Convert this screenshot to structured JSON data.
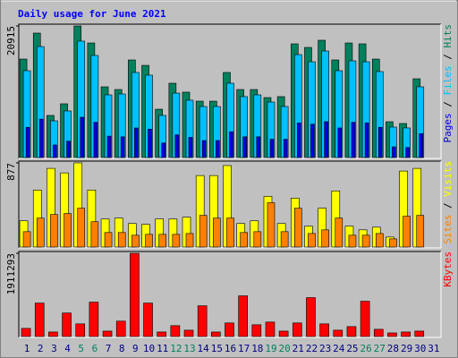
{
  "chart_data": {
    "type": "bar",
    "title": "Daily usage for June 2021",
    "legend_separator": " / ",
    "categories": [
      "1",
      "2",
      "3",
      "4",
      "5",
      "6",
      "7",
      "8",
      "9",
      "10",
      "11",
      "12",
      "13",
      "14",
      "15",
      "16",
      "17",
      "18",
      "19",
      "20",
      "21",
      "22",
      "23",
      "24",
      "25",
      "26",
      "27",
      "28",
      "29",
      "30",
      "31"
    ],
    "category_colors": [
      "#000080",
      "#000080",
      "#000080",
      "#000080",
      "#008060",
      "#008060",
      "#000080",
      "#000080",
      "#000080",
      "#000080",
      "#000080",
      "#008060",
      "#008060",
      "#000080",
      "#000080",
      "#000080",
      "#000080",
      "#000080",
      "#008060",
      "#008060",
      "#000080",
      "#000080",
      "#000080",
      "#000080",
      "#000080",
      "#008060",
      "#008060",
      "#000080",
      "#000080",
      "#000080",
      "#000080"
    ],
    "panels": [
      {
        "ylim": [
          0,
          20915
        ],
        "yticks": [
          20915
        ],
        "series": [
          {
            "name": "Hits",
            "color": "#00805c",
            "values": [
              15650,
              19780,
              6690,
              8540,
              20915,
              18210,
              11240,
              10810,
              15510,
              14650,
              7680,
              11810,
              10390,
              8960,
              8960,
              13520,
              10810,
              10810,
              9530,
              9680,
              18070,
              17500,
              18640,
              15510,
              18210,
              18070,
              15650,
              5690,
              5410,
              12520,
              null
            ]
          },
          {
            "name": "Files",
            "color": "#00c0ff",
            "values": [
              13800,
              17640,
              5830,
              7400,
              18500,
              16220,
              9960,
              10100,
              13520,
              13090,
              6690,
              10240,
              9110,
              8110,
              8110,
              11810,
              9680,
              9960,
              8820,
              8110,
              16360,
              15220,
              16930,
              13800,
              15370,
              15220,
              13660,
              4840,
              4700,
              11240,
              null
            ]
          },
          {
            "name": "Pages",
            "color": "#0000e0",
            "values": [
              4800,
              6100,
              2000,
              2600,
              6400,
              5600,
              3400,
              3300,
              4700,
              4500,
              2300,
              3600,
              3200,
              2700,
              2700,
              4100,
              3300,
              3300,
              2900,
              2900,
              5500,
              5300,
              5700,
              4700,
              5600,
              5500,
              4800,
              1700,
              1600,
              3800,
              null
            ]
          }
        ]
      },
      {
        "ylim": [
          0,
          877
        ],
        "yticks": [
          877
        ],
        "series": [
          {
            "name": "Visits",
            "color": "#ffff00",
            "values": [
              273,
              594,
              820,
              773,
              877,
              594,
              292,
              302,
              245,
              236,
              292,
              292,
              311,
              745,
              745,
              849,
              245,
              273,
              528,
              245,
              509,
              217,
              405,
              585,
              217,
              179,
              207,
              104,
              792,
              820,
              null
            ]
          },
          {
            "name": "Sites",
            "color": "#ff8000",
            "values": [
              160,
              302,
              339,
              349,
              405,
              264,
              151,
              151,
              123,
              132,
              132,
              132,
              141,
              330,
              302,
              302,
              151,
              160,
              462,
              160,
              405,
              141,
              179,
              302,
              123,
              123,
              141,
              85,
              321,
              330,
              null
            ]
          }
        ]
      },
      {
        "ylim": [
          0,
          1911293
        ],
        "yticks": [
          1911293
        ],
        "series": [
          {
            "name": "KBytes",
            "color": "#ff0000",
            "values": [
              186980,
              768680,
              103880,
              540150,
              290850,
              789450,
              124650,
              353180,
              1911293,
              768680,
              103880,
              249300,
              145430,
              706350,
              103880,
              311630,
              934880,
              270080,
              332400,
              124650,
              311630,
              893330,
              290850,
              145430,
              228530,
              810230,
              166200,
              83100,
              103880,
              124650,
              null
            ]
          }
        ]
      }
    ]
  }
}
